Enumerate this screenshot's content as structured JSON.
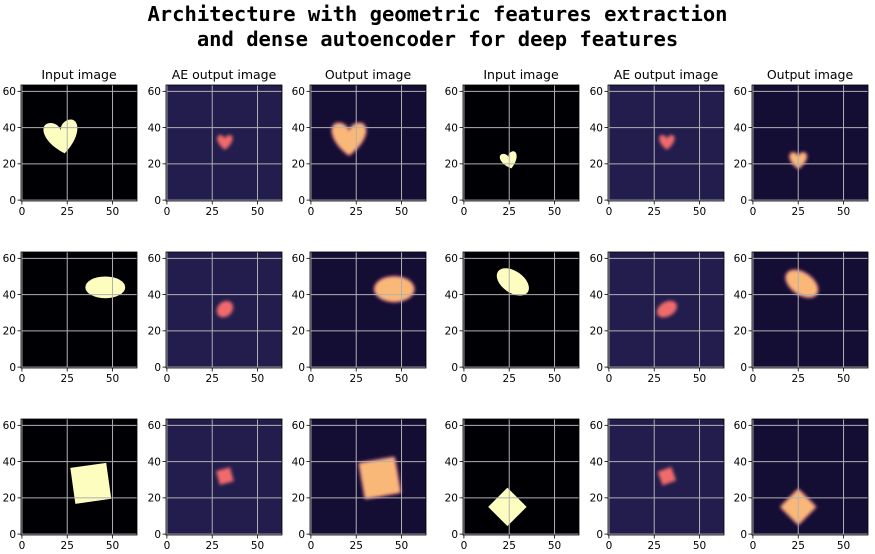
{
  "title_lines": [
    "Architecture with geometric features extraction",
    "and dense autoencoder for deep features"
  ],
  "chart_data": {
    "type": "image_grid",
    "rows": 3,
    "cols": 6,
    "column_titles": [
      "Input image",
      "AE output image",
      "Output image",
      "Input image",
      "AE output image",
      "Output image"
    ],
    "x_ticks": [
      0,
      25,
      50
    ],
    "y_ticks": [
      0,
      20,
      40,
      60
    ],
    "xlim": [
      -0.5,
      63.5
    ],
    "ylim": [
      63.5,
      -0.5
    ],
    "grid": true,
    "colormap": "magma",
    "panels": [
      {
        "row": 0,
        "col": 0,
        "kind": "input",
        "shape": "heart",
        "cx": 22,
        "cy": 35,
        "size": 22,
        "angle": -10
      },
      {
        "row": 0,
        "col": 1,
        "kind": "ae",
        "shape": "heart",
        "cx": 32,
        "cy": 32,
        "size": 10,
        "angle": 0
      },
      {
        "row": 0,
        "col": 2,
        "kind": "output",
        "shape": "heart",
        "cx": 21,
        "cy": 34,
        "size": 22,
        "angle": 0
      },
      {
        "row": 0,
        "col": 3,
        "kind": "input",
        "shape": "heart",
        "cx": 25,
        "cy": 22,
        "size": 11,
        "angle": -15
      },
      {
        "row": 0,
        "col": 4,
        "kind": "ae",
        "shape": "heart",
        "cx": 32,
        "cy": 32,
        "size": 10,
        "angle": 0
      },
      {
        "row": 0,
        "col": 5,
        "kind": "output",
        "shape": "heart",
        "cx": 25,
        "cy": 22,
        "size": 11,
        "angle": 0
      },
      {
        "row": 1,
        "col": 0,
        "kind": "input",
        "shape": "ellipse",
        "cx": 46,
        "cy": 44,
        "size": 22,
        "ry": 6,
        "angle": 0
      },
      {
        "row": 1,
        "col": 1,
        "kind": "ae",
        "shape": "ellipse",
        "cx": 32,
        "cy": 32,
        "size": 10,
        "ry": 4,
        "angle": -45
      },
      {
        "row": 1,
        "col": 2,
        "kind": "output",
        "shape": "ellipse",
        "cx": 46,
        "cy": 43,
        "size": 22,
        "ry": 7,
        "angle": 0
      },
      {
        "row": 1,
        "col": 3,
        "kind": "input",
        "shape": "ellipse",
        "cx": 27,
        "cy": 47,
        "size": 20,
        "ry": 6,
        "angle": 35
      },
      {
        "row": 1,
        "col": 4,
        "kind": "ae",
        "shape": "ellipse",
        "cx": 32,
        "cy": 32,
        "size": 12,
        "ry": 4,
        "angle": -30
      },
      {
        "row": 1,
        "col": 5,
        "kind": "output",
        "shape": "ellipse",
        "cx": 27,
        "cy": 46,
        "size": 20,
        "ry": 6,
        "angle": 35
      },
      {
        "row": 2,
        "col": 0,
        "kind": "input",
        "shape": "square",
        "cx": 38,
        "cy": 28,
        "size": 20,
        "angle": -8
      },
      {
        "row": 2,
        "col": 1,
        "kind": "ae",
        "shape": "square",
        "cx": 32,
        "cy": 32,
        "size": 8,
        "angle": -15
      },
      {
        "row": 2,
        "col": 2,
        "kind": "output",
        "shape": "square",
        "cx": 38,
        "cy": 31,
        "size": 20,
        "angle": -10
      },
      {
        "row": 2,
        "col": 3,
        "kind": "input",
        "shape": "square",
        "cx": 24,
        "cy": 15,
        "size": 15,
        "angle": 45
      },
      {
        "row": 2,
        "col": 4,
        "kind": "ae",
        "shape": "square",
        "cx": 32,
        "cy": 32,
        "size": 8,
        "angle": -20
      },
      {
        "row": 2,
        "col": 5,
        "kind": "output",
        "shape": "square",
        "cx": 25,
        "cy": 15,
        "size": 14,
        "angle": 45
      }
    ]
  },
  "colors": {
    "input_bg": "#000004",
    "input_fg": "#fcfdbf",
    "ae_bg": "#221d4d",
    "ae_fg": "#f06a6c",
    "output_bg": "#150e34",
    "output_fg": "#f9b878",
    "output_edge": "#9e2f7f",
    "grid": "#b0b0b0"
  }
}
